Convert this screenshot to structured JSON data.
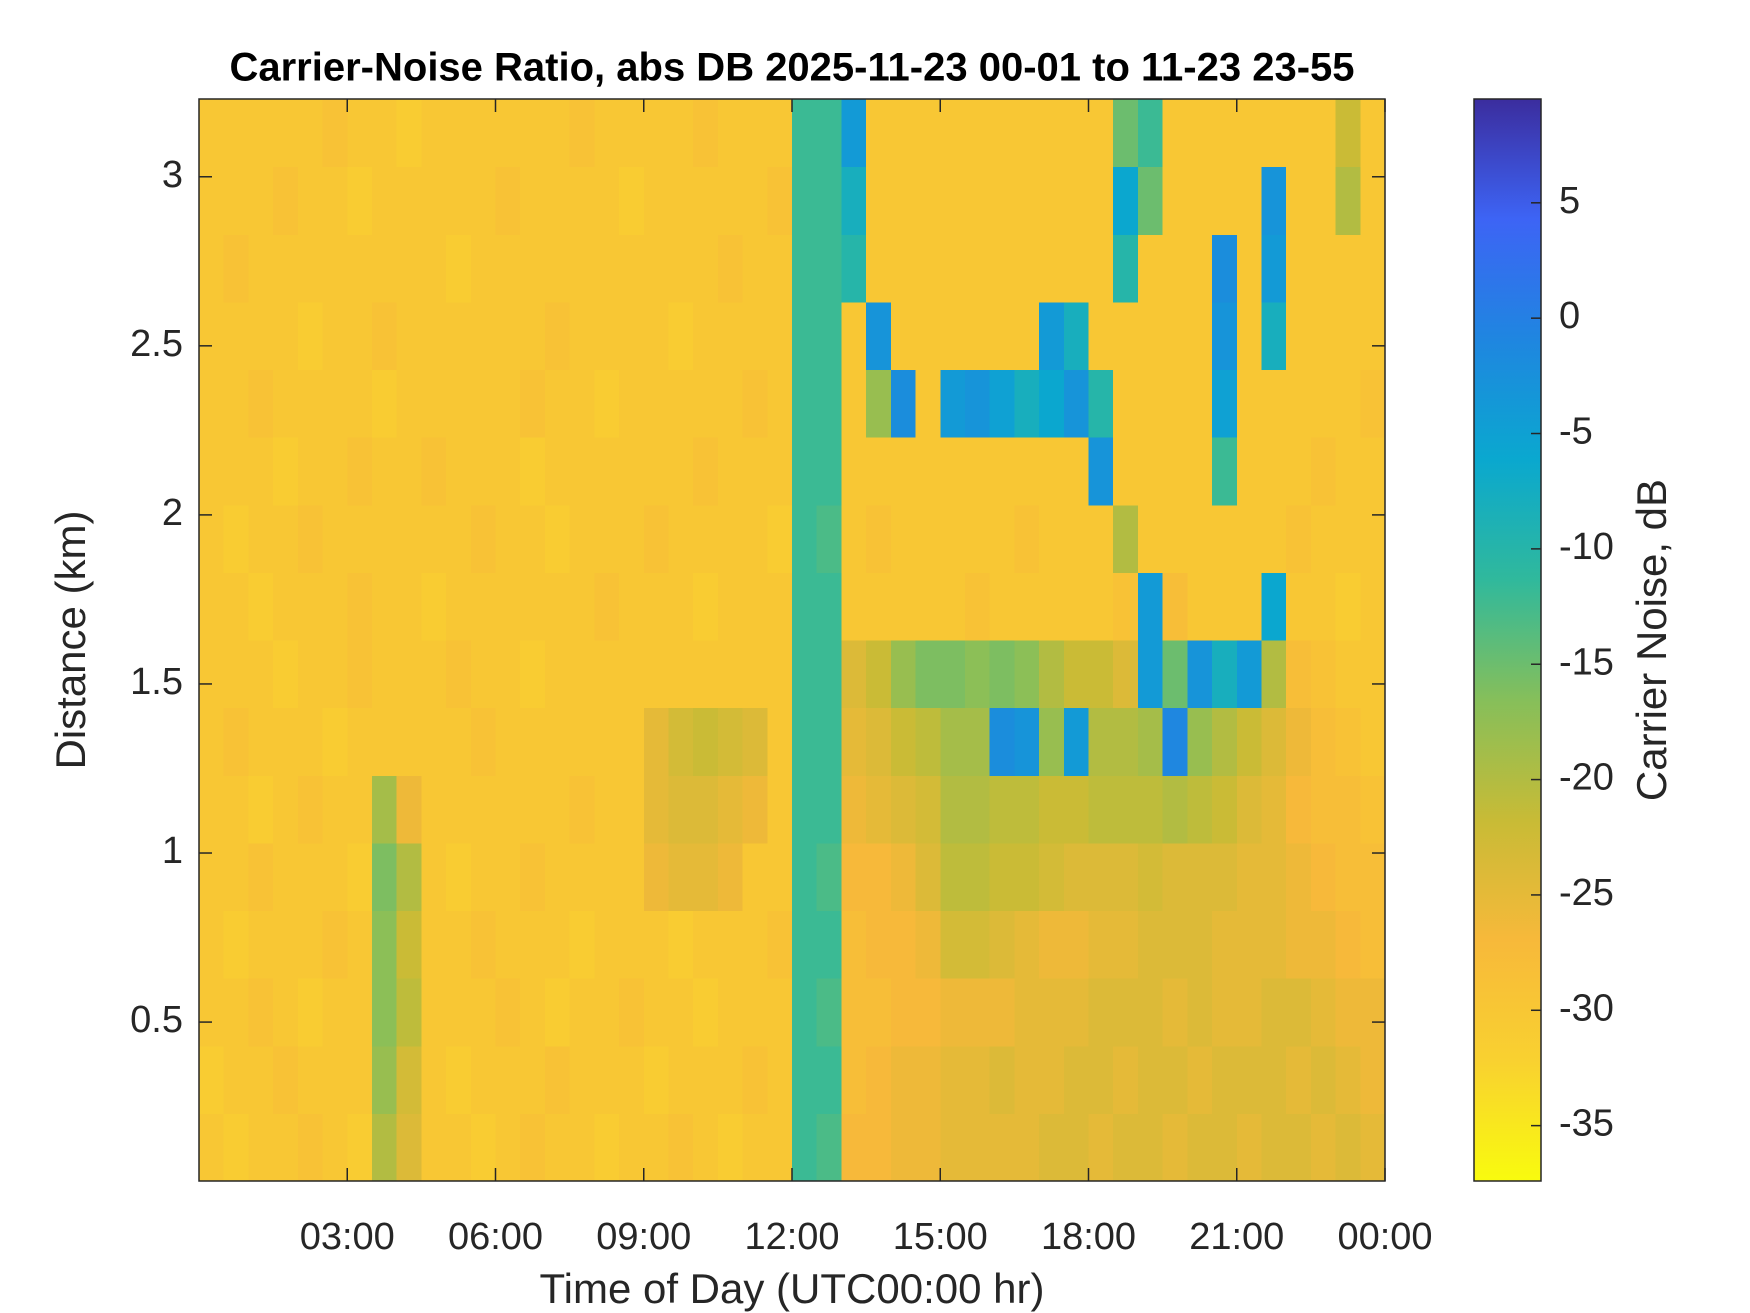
{
  "chart_data": {
    "type": "heatmap",
    "title": "Carrier-Noise Ratio, abs DB 2025-11-23 00-01 to 11-23 23-55",
    "x_label": "Time of Day (UTC00:00 hr)",
    "y_label": "Distance (km)",
    "colorbar_label": "Carrier Noise, dB",
    "x": [
      0.25,
      0.75,
      1.25,
      1.75,
      2.25,
      2.75,
      3.25,
      3.75,
      4.25,
      4.75,
      5.25,
      5.75,
      6.25,
      6.75,
      7.25,
      7.75,
      8.25,
      8.75,
      9.25,
      9.75,
      10.25,
      10.75,
      11.25,
      11.75,
      12.25,
      12.75,
      13.25,
      13.75,
      14.25,
      14.75,
      15.25,
      15.75,
      16.25,
      16.75,
      17.25,
      17.75,
      18.25,
      18.75,
      19.25,
      19.75,
      20.25,
      20.75,
      21.25,
      21.75,
      22.25,
      22.75,
      23.25,
      23.75
    ],
    "y": [
      0.13,
      0.33,
      0.53,
      0.73,
      0.93,
      1.13,
      1.33,
      1.53,
      1.73,
      1.93,
      2.13,
      2.33,
      2.53,
      2.73,
      2.93,
      3.13
    ],
    "values": [
      [
        -30,
        -31,
        -30,
        -30,
        -29,
        -30,
        -31,
        -20,
        -24,
        -30,
        -30,
        -31,
        -30,
        -29,
        -30,
        -30,
        -31,
        -30,
        -30,
        -29,
        -30,
        -31,
        -30,
        -30,
        -12,
        -13,
        -27,
        -27,
        -26,
        -26,
        -25,
        -25,
        -25,
        -25,
        -24,
        -24,
        -25,
        -24,
        -24,
        -25,
        -24,
        -24,
        -25,
        -24,
        -24,
        -25,
        -24,
        -25
      ],
      [
        -31,
        -30,
        -30,
        -29,
        -30,
        -30,
        -30,
        -18,
        -23,
        -30,
        -31,
        -30,
        -30,
        -30,
        -29,
        -30,
        -30,
        -30,
        -31,
        -30,
        -30,
        -30,
        -29,
        -30,
        -12,
        -12,
        -28,
        -27,
        -26,
        -26,
        -25,
        -25,
        -24,
        -25,
        -25,
        -24,
        -24,
        -25,
        -24,
        -24,
        -25,
        -24,
        -24,
        -24,
        -25,
        -24,
        -25,
        -26
      ],
      [
        -30,
        -30,
        -29,
        -30,
        -31,
        -30,
        -30,
        -17,
        -21,
        -30,
        -30,
        -30,
        -29,
        -30,
        -31,
        -30,
        -30,
        -29,
        -30,
        -30,
        -31,
        -30,
        -30,
        -30,
        -12,
        -13,
        -28,
        -28,
        -27,
        -27,
        -26,
        -26,
        -26,
        -25,
        -25,
        -25,
        -24,
        -24,
        -24,
        -25,
        -24,
        -25,
        -25,
        -24,
        -24,
        -25,
        -26,
        -26
      ],
      [
        -30,
        -31,
        -30,
        -30,
        -30,
        -29,
        -30,
        -17,
        -22,
        -30,
        -30,
        -29,
        -30,
        -30,
        -30,
        -31,
        -30,
        -30,
        -30,
        -31,
        -30,
        -30,
        -30,
        -29,
        -12,
        -12,
        -28,
        -27,
        -27,
        -26,
        -23,
        -23,
        -24,
        -25,
        -26,
        -26,
        -25,
        -25,
        -24,
        -24,
        -24,
        -25,
        -25,
        -25,
        -26,
        -26,
        -27,
        -28
      ],
      [
        -30,
        -30,
        -29,
        -30,
        -30,
        -30,
        -31,
        -16,
        -20,
        -30,
        -31,
        -30,
        -30,
        -29,
        -30,
        -30,
        -30,
        -30,
        -26,
        -25,
        -25,
        -26,
        -30,
        -30,
        -12,
        -13,
        -27,
        -27,
        -26,
        -24,
        -21,
        -21,
        -22,
        -22,
        -23,
        -24,
        -24,
        -24,
        -23,
        -24,
        -24,
        -24,
        -25,
        -25,
        -26,
        -27,
        -28,
        -28
      ],
      [
        -30,
        -30,
        -31,
        -30,
        -29,
        -30,
        -30,
        -19,
        -26,
        -30,
        -30,
        -30,
        -30,
        -30,
        -30,
        -29,
        -30,
        -30,
        -25,
        -24,
        -24,
        -25,
        -26,
        -30,
        -12,
        -12,
        -26,
        -25,
        -24,
        -23,
        -20,
        -20,
        -21,
        -21,
        -22,
        -22,
        -21,
        -21,
        -21,
        -20,
        -21,
        -22,
        -24,
        -25,
        -27,
        -28,
        -28,
        -29
      ],
      [
        -30,
        -29,
        -30,
        -30,
        -30,
        -31,
        -30,
        -30,
        -30,
        -30,
        -30,
        -29,
        -30,
        -30,
        -30,
        -30,
        -30,
        -30,
        -25,
        -23,
        -22,
        -23,
        -24,
        -30,
        -12,
        -12,
        -25,
        -24,
        -22,
        -21,
        -19,
        -19,
        -2,
        -3,
        -18,
        -4,
        -20,
        -20,
        -19,
        -1,
        -18,
        -20,
        -22,
        -24,
        -26,
        -28,
        -29,
        -30
      ],
      [
        -30,
        -30,
        -30,
        -31,
        -30,
        -30,
        -29,
        -30,
        -30,
        -30,
        -29,
        -30,
        -30,
        -31,
        -30,
        -30,
        -30,
        -30,
        -30,
        -30,
        -30,
        -30,
        -30,
        -30,
        -12,
        -12,
        -24,
        -22,
        -18,
        -16,
        -16,
        -17,
        -16,
        -17,
        -20,
        -22,
        -22,
        -24,
        -4,
        -15,
        -3,
        -8,
        -4,
        -20,
        -28,
        -29,
        -30,
        -30
      ],
      [
        -30,
        -30,
        -31,
        -30,
        -30,
        -30,
        -29,
        -30,
        -30,
        -31,
        -30,
        -30,
        -30,
        -30,
        -30,
        -30,
        -29,
        -30,
        -30,
        -30,
        -31,
        -30,
        -30,
        -30,
        -12,
        -12,
        -30,
        -30,
        -30,
        -30,
        -30,
        -29,
        -30,
        -30,
        -30,
        -30,
        -30,
        -29,
        -4,
        -28,
        -30,
        -30,
        -30,
        -6,
        -30,
        -30,
        -31,
        -30
      ],
      [
        -30,
        -31,
        -30,
        -30,
        -29,
        -30,
        -30,
        -30,
        -30,
        -30,
        -30,
        -29,
        -30,
        -30,
        -31,
        -30,
        -30,
        -30,
        -29,
        -30,
        -30,
        -30,
        -30,
        -31,
        -12,
        -13,
        -30,
        -29,
        -30,
        -30,
        -30,
        -30,
        -30,
        -29,
        -30,
        -30,
        -30,
        -20,
        -30,
        -30,
        -30,
        -30,
        -30,
        -30,
        -29,
        -30,
        -30,
        -30
      ],
      [
        -30,
        -30,
        -30,
        -31,
        -30,
        -30,
        -29,
        -30,
        -30,
        -29,
        -30,
        -30,
        -30,
        -31,
        -30,
        -30,
        -30,
        -30,
        -30,
        -30,
        -29,
        -30,
        -30,
        -30,
        -12,
        -12,
        -30,
        -30,
        -30,
        -30,
        -30,
        -30,
        -30,
        -30,
        -30,
        -30,
        -3,
        -30,
        -30,
        -30,
        -30,
        -12,
        -30,
        -30,
        -30,
        -29,
        -30,
        -30
      ],
      [
        -30,
        -30,
        -29,
        -30,
        -30,
        -30,
        -30,
        -31,
        -30,
        -30,
        -30,
        -30,
        -30,
        -29,
        -30,
        -30,
        -31,
        -30,
        -30,
        -30,
        -30,
        -30,
        -29,
        -30,
        -12,
        -12,
        -30,
        -18,
        -2,
        -30,
        -4,
        -3,
        -5,
        -8,
        -6,
        -3,
        -10,
        -30,
        -30,
        -30,
        -30,
        -5,
        -30,
        -30,
        -30,
        -30,
        -30,
        -29
      ],
      [
        -30,
        -30,
        -30,
        -30,
        -31,
        -30,
        -30,
        -29,
        -30,
        -30,
        -30,
        -30,
        -30,
        -30,
        -29,
        -30,
        -30,
        -30,
        -30,
        -31,
        -30,
        -30,
        -30,
        -30,
        -12,
        -12,
        -30,
        -3,
        -30,
        -30,
        -30,
        -30,
        -30,
        -30,
        -4,
        -8,
        -30,
        -30,
        -30,
        -30,
        -30,
        -3,
        -30,
        -8,
        -30,
        -30,
        -30,
        -30
      ],
      [
        -30,
        -29,
        -30,
        -30,
        -30,
        -30,
        -30,
        -30,
        -30,
        -30,
        -31,
        -30,
        -30,
        -30,
        -30,
        -30,
        -30,
        -30,
        -30,
        -30,
        -30,
        -29,
        -30,
        -30,
        -12,
        -12,
        -10,
        -30,
        -30,
        -30,
        -30,
        -30,
        -30,
        -30,
        -30,
        -30,
        -30,
        -10,
        -30,
        -30,
        -30,
        -2,
        -30,
        -4,
        -30,
        -30,
        -30,
        -30
      ],
      [
        -30,
        -30,
        -30,
        -29,
        -30,
        -30,
        -31,
        -30,
        -30,
        -30,
        -30,
        -30,
        -29,
        -30,
        -30,
        -30,
        -30,
        -31,
        -30,
        -30,
        -30,
        -30,
        -30,
        -29,
        -12,
        -12,
        -8,
        -30,
        -30,
        -30,
        -30,
        -30,
        -30,
        -30,
        -30,
        -30,
        -30,
        -6,
        -15,
        -30,
        -30,
        -30,
        -30,
        -3,
        -30,
        -30,
        -20,
        -30
      ],
      [
        -30,
        -30,
        -30,
        -30,
        -30,
        -29,
        -30,
        -30,
        -31,
        -30,
        -30,
        -30,
        -30,
        -30,
        -30,
        -29,
        -30,
        -30,
        -30,
        -30,
        -29,
        -30,
        -30,
        -30,
        -12,
        -12,
        -4,
        -30,
        -30,
        -30,
        -30,
        -30,
        -30,
        -30,
        -30,
        -30,
        -30,
        -15,
        -12,
        -30,
        -30,
        -30,
        -30,
        -30,
        -30,
        -30,
        -22,
        -30
      ]
    ],
    "xlim": [
      0,
      24
    ],
    "ylim": [
      0.03,
      3.23
    ],
    "xticks": [
      {
        "value": 3,
        "label": "03:00"
      },
      {
        "value": 6,
        "label": "06:00"
      },
      {
        "value": 9,
        "label": "09:00"
      },
      {
        "value": 12,
        "label": "12:00"
      },
      {
        "value": 15,
        "label": "15:00"
      },
      {
        "value": 18,
        "label": "18:00"
      },
      {
        "value": 21,
        "label": "21:00"
      },
      {
        "value": 24,
        "label": "00:00"
      }
    ],
    "yticks": [
      0.5,
      1,
      1.5,
      2,
      2.5,
      3
    ],
    "clim": [
      -37.4,
      9.5
    ],
    "cticks": [
      -35,
      -30,
      -25,
      -20,
      -15,
      -10,
      -5,
      0,
      5
    ],
    "colormap": [
      "#f9fb0e",
      "#f9d130",
      "#f7b93a",
      "#c8bb36",
      "#86bf5a",
      "#30b99c",
      "#0aa8cf",
      "#1f86e0",
      "#3d64f5",
      "#3b2d9e"
    ]
  }
}
